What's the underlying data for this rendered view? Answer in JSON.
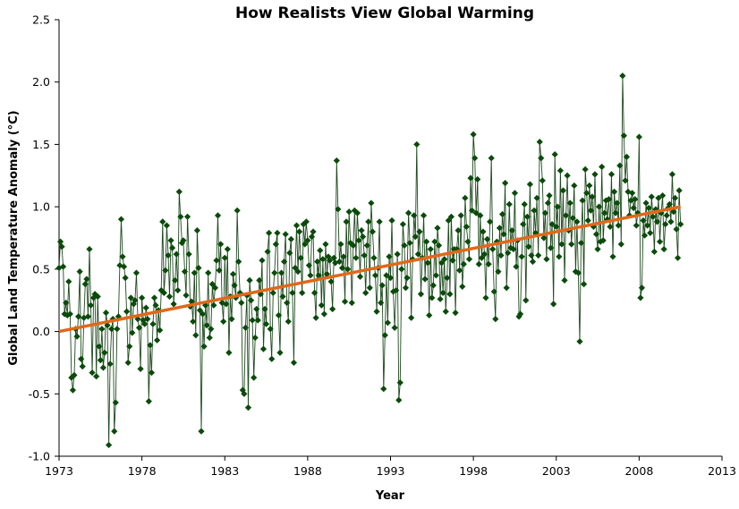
{
  "chart_data": {
    "type": "line",
    "title": "How Realists View Global Warming",
    "xlabel": "Year",
    "ylabel": "Global Land Temperature Anomaly (°C)",
    "xlim": [
      1973,
      2013
    ],
    "ylim": [
      -1.0,
      2.5
    ],
    "xticks": [
      1973,
      1978,
      1983,
      1988,
      1993,
      1998,
      2003,
      2008,
      2013
    ],
    "yticks": [
      -1.0,
      -0.5,
      0.0,
      0.5,
      1.0,
      1.5,
      2.0,
      2.5
    ],
    "ytick_labels": [
      "-1.0",
      "-0.5",
      "0.0",
      "0.5",
      "1.0",
      "1.5",
      "2.0",
      "2.5"
    ],
    "grid": false,
    "series": [
      {
        "kind": "monthly-markers-line",
        "start_year": 1973,
        "step": "monthly",
        "color": "#0a4a0a",
        "values": [
          0.51,
          0.72,
          0.68,
          0.52,
          0.14,
          0.23,
          0.13,
          0.4,
          0.14,
          -0.37,
          -0.47,
          -0.35,
          0.02,
          -0.04,
          0.12,
          0.48,
          -0.22,
          -0.28,
          0.11,
          0.38,
          0.42,
          0.12,
          0.66,
          0.21,
          -0.33,
          0.27,
          0.3,
          -0.36,
          0.28,
          -0.12,
          -0.23,
          0.02,
          -0.29,
          -0.17,
          0.15,
          0.05,
          -0.91,
          -0.26,
          0.02,
          0.1,
          -0.8,
          -0.57,
          0.02,
          0.12,
          0.53,
          0.9,
          0.6,
          0.52,
          0.43,
          0.16,
          -0.25,
          -0.12,
          0.27,
          -0.01,
          0.22,
          0.25,
          0.47,
          0.1,
          0.03,
          -0.3,
          0.27,
          0.09,
          0.06,
          0.19,
          0.1,
          -0.56,
          -0.11,
          -0.33,
          0.06,
          0.27,
          0.21,
          -0.07,
          0.17,
          0.01,
          0.33,
          0.88,
          0.31,
          0.49,
          0.85,
          0.61,
          0.28,
          0.73,
          0.67,
          0.22,
          0.41,
          0.62,
          0.33,
          1.12,
          0.92,
          0.71,
          0.73,
          0.48,
          0.29,
          0.92,
          0.62,
          0.2,
          0.24,
          0.08,
          0.47,
          -0.03,
          0.81,
          0.51,
          0.17,
          -0.8,
          0.14,
          -0.12,
          0.21,
          0.05,
          0.47,
          -0.05,
          0.02,
          0.38,
          0.21,
          0.35,
          0.57,
          0.93,
          0.49,
          0.7,
          0.23,
          0.08,
          0.59,
          0.22,
          0.66,
          -0.17,
          0.28,
          0.1,
          0.46,
          0.37,
          0.27,
          0.97,
          0.56,
          0.31,
          0.23,
          -0.47,
          -0.5,
          0.03,
          0.29,
          -0.61,
          0.41,
          0.25,
          0.09,
          -0.37,
          -0.05,
          0.18,
          0.09,
          0.41,
          0.3,
          0.57,
          -0.14,
          0.18,
          0.06,
          0.64,
          0.79,
          0.02,
          -0.22,
          0.31,
          0.47,
          0.7,
          0.79,
          0.13,
          -0.17,
          0.47,
          0.28,
          0.56,
          0.78,
          0.23,
          0.08,
          0.63,
          0.74,
          0.31,
          -0.25,
          0.51,
          0.85,
          0.48,
          0.8,
          0.59,
          0.31,
          0.86,
          0.7,
          0.88,
          0.73,
          0.53,
          0.45,
          0.76,
          0.8,
          0.31,
          0.11,
          0.56,
          0.45,
          0.65,
          0.21,
          0.58,
          0.14,
          0.7,
          0.46,
          0.6,
          0.57,
          0.4,
          0.18,
          0.59,
          0.55,
          1.37,
          0.98,
          0.56,
          0.7,
          0.51,
          0.6,
          0.24,
          0.88,
          0.5,
          0.96,
          0.71,
          0.23,
          0.69,
          0.97,
          0.59,
          0.95,
          0.73,
          0.44,
          0.81,
          0.76,
          0.61,
          0.31,
          0.69,
          0.88,
          0.35,
          1.03,
          0.8,
          0.59,
          0.45,
          0.16,
          0.51,
          0.88,
          0.23,
          0.37,
          -0.46,
          -0.03,
          0.45,
          0.07,
          0.6,
          0.43,
          0.89,
          0.32,
          0.03,
          0.33,
          0.62,
          -0.55,
          -0.41,
          0.5,
          0.86,
          0.69,
          0.35,
          0.43,
          0.95,
          0.71,
          0.11,
          0.58,
          0.93,
          0.76,
          1.5,
          0.62,
          0.8,
          0.3,
          0.59,
          0.93,
          0.42,
          0.72,
          0.55,
          0.13,
          0.66,
          0.27,
          0.37,
          0.72,
          0.45,
          0.83,
          0.69,
          0.26,
          0.55,
          0.31,
          0.58,
          0.16,
          0.43,
          0.89,
          0.3,
          0.92,
          0.57,
          0.66,
          0.15,
          0.66,
          0.81,
          0.49,
          0.93,
          0.36,
          0.54,
          1.07,
          0.84,
          0.72,
          0.58,
          1.23,
          0.97,
          1.58,
          1.39,
          0.95,
          1.22,
          0.54,
          0.93,
          0.59,
          0.8,
          0.62,
          0.27,
          0.74,
          0.54,
          0.88,
          1.39,
          0.66,
          0.32,
          0.1,
          0.72,
          0.48,
          0.83,
          0.61,
          0.94,
          0.78,
          1.19,
          0.35,
          0.63,
          1.02,
          0.67,
          0.81,
          0.66,
          1.11,
          0.52,
          0.73,
          0.12,
          0.14,
          0.6,
          0.86,
          1.02,
          0.25,
          0.92,
          0.68,
          1.18,
          0.61,
          0.56,
          0.97,
          0.79,
          1.07,
          0.61,
          1.52,
          1.39,
          1.21,
          0.75,
          0.95,
          0.58,
          1.03,
          1.09,
          0.67,
          0.86,
          0.22,
          1.42,
          0.84,
          1.0,
          0.6,
          1.29,
          0.7,
          1.13,
          0.41,
          0.93,
          1.25,
          0.81,
          1.03,
          0.7,
          0.91,
          1.17,
          0.48,
          0.88,
          0.47,
          -0.08,
          0.71,
          1.05,
          0.38,
          1.3,
          1.11,
          0.89,
          1.17,
          0.97,
          1.08,
          0.84,
          1.26,
          0.78,
          0.66,
          1.0,
          0.72,
          1.32,
          0.73,
          0.95,
          1.05,
          0.9,
          1.06,
          0.84,
          1.26,
          0.6,
          1.12,
          0.95,
          1.03,
          0.85,
          1.33,
          0.7,
          2.05,
          1.57,
          1.21,
          1.4,
          1.12,
          0.93,
          1.05,
          1.11,
          0.99,
          1.06,
          0.85,
          0.95,
          1.56,
          0.27,
          0.35,
          0.89,
          0.77,
          1.03,
          0.85,
          0.99,
          0.79,
          1.08,
          0.92,
          0.64,
          0.98,
          0.88,
          1.07,
          0.72,
          0.95,
          1.09,
          0.66,
          0.86,
          0.93,
          0.99,
          1.02,
          0.88,
          1.26,
          0.96,
          1.07,
          0.82,
          0.59,
          1.13,
          0.86
        ]
      }
    ],
    "trendline": {
      "type": "linear",
      "color": "#e0681a",
      "x": [
        1973,
        2010.5
      ],
      "y": [
        0.0,
        1.0
      ]
    }
  }
}
